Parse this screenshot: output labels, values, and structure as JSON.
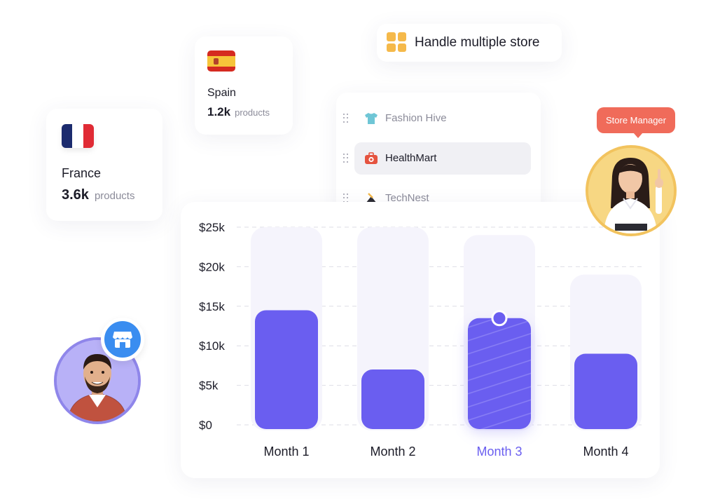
{
  "france": {
    "country": "France",
    "count": "3.6k",
    "unit": "products"
  },
  "spain": {
    "country": "Spain",
    "count": "1.2k",
    "unit": "products"
  },
  "store_pill": {
    "label": "Handle multiple store",
    "icon": "grid-icon"
  },
  "stores": [
    {
      "name": "Fashion Hive",
      "icon": "tshirt-icon"
    },
    {
      "name": "HealthMart",
      "icon": "medical-kit-icon"
    },
    {
      "name": "TechNest",
      "icon": "tech-icon"
    }
  ],
  "manager": {
    "tag": "Store Manager"
  },
  "colors": {
    "bar": "#6a5ef0",
    "track": "#f5f4fc",
    "highlight_label": "#6a5ef0",
    "tag": "#f06b5a"
  },
  "chart_data": {
    "type": "bar",
    "categories": [
      "Month 1",
      "Month 2",
      "Month 3",
      "Month 4"
    ],
    "values": [
      14500,
      7000,
      13500,
      9000
    ],
    "track_values": [
      26000,
      26000,
      24000,
      19000
    ],
    "yticks": [
      "$0",
      "$5k",
      "$10k",
      "$15k",
      "$20k",
      "$25k"
    ],
    "ylim": [
      0,
      25000
    ],
    "highlighted": "Month 3",
    "grid": true
  }
}
